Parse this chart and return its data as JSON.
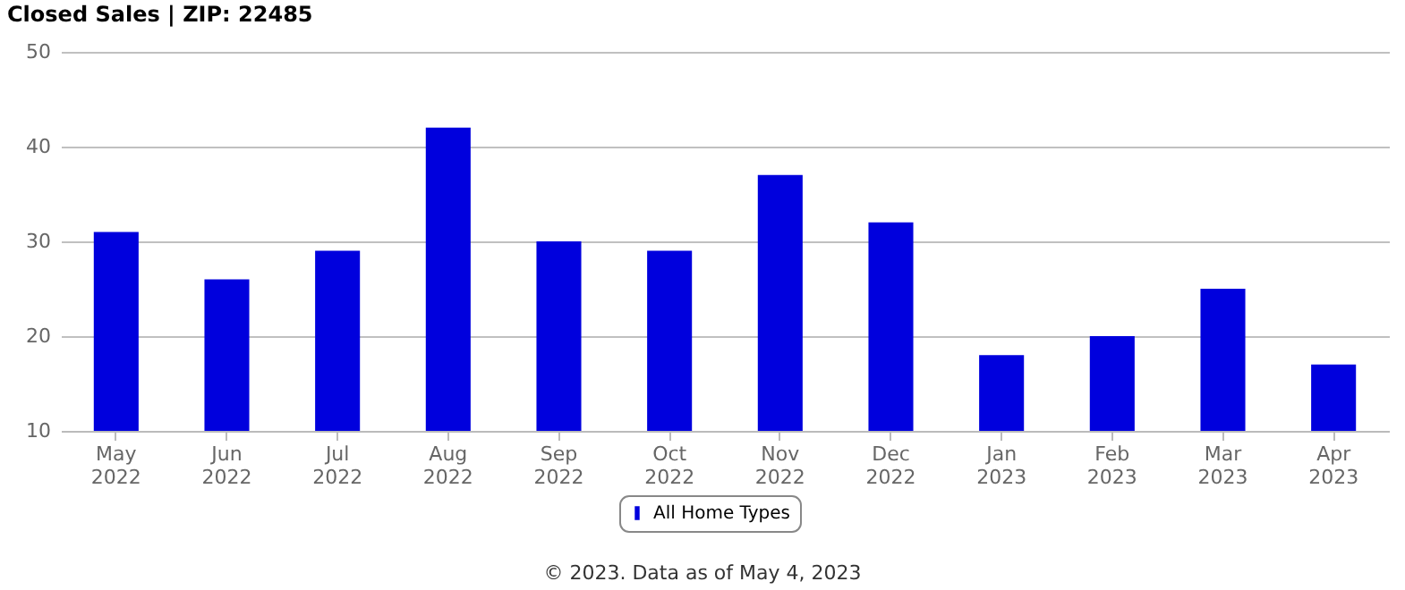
{
  "chart_data": {
    "type": "bar",
    "title": "Closed Sales | ZIP: 22485",
    "categories": [
      "May 2022",
      "Jun 2022",
      "Jul 2022",
      "Aug 2022",
      "Sep 2022",
      "Oct 2022",
      "Nov 2022",
      "Dec 2022",
      "Jan 2023",
      "Feb 2023",
      "Mar 2023",
      "Apr 2023"
    ],
    "series": [
      {
        "name": "All Home Types",
        "color": "#0000dd",
        "values": [
          31,
          26,
          29,
          42,
          30,
          29,
          37,
          32,
          18,
          20,
          25,
          17
        ]
      }
    ],
    "ylim": [
      10,
      50
    ],
    "yticks": [
      10,
      20,
      30,
      40,
      50
    ],
    "grid": "y",
    "legend": "bottom",
    "annotations": [
      "© 2023. Data as of May 4, 2023"
    ]
  }
}
